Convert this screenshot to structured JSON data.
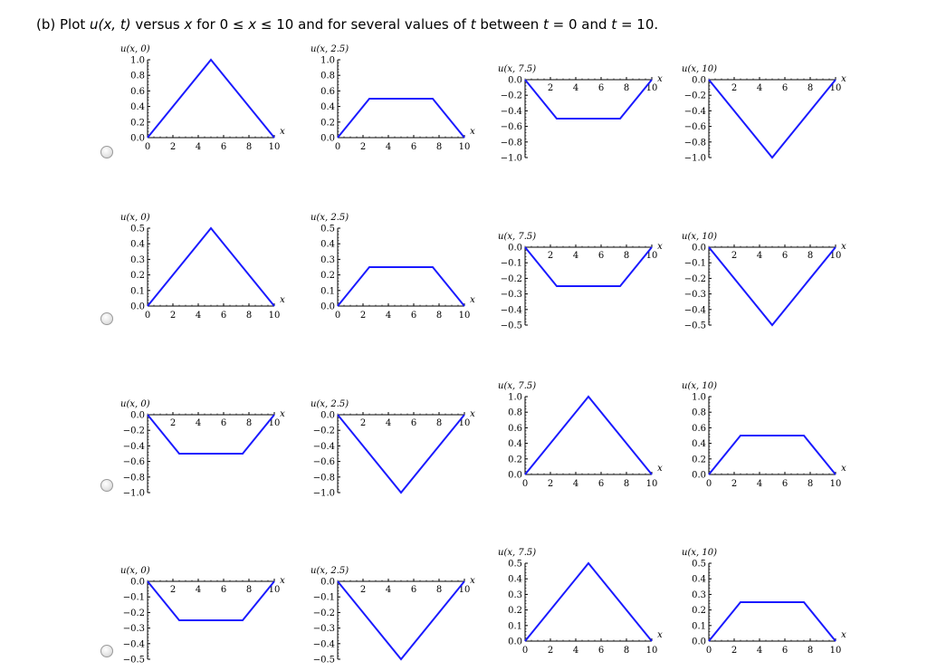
{
  "question": {
    "part": "(b) Plot ",
    "func": "u(x, t)",
    "mid1": " versus ",
    "var_x": "x",
    "mid2": " for  0 ≤ ",
    "mid3": " ≤ 10  and for several values of ",
    "var_t": "t",
    "mid4": " between  ",
    "mid5": " = 0  and  ",
    "mid6": " = 10."
  },
  "colors": {
    "curve": "#1a1aff",
    "axis": "#000000",
    "radio_border": "#9a9a9a"
  },
  "options": [
    {
      "name": "option-a",
      "plots": [
        {
          "label": "u(x, 0)",
          "yticks": [
            "1.0",
            "0.8",
            "0.6",
            "0.4",
            "0.2",
            "0.0"
          ],
          "ymin": 0,
          "ymax": 1.0,
          "points": [
            [
              0,
              0
            ],
            [
              5,
              1
            ],
            [
              10,
              0
            ]
          ]
        },
        {
          "label": "u(x, 2.5)",
          "yticks": [
            "1.0",
            "0.8",
            "0.6",
            "0.4",
            "0.2",
            "0.0"
          ],
          "ymin": 0,
          "ymax": 1.0,
          "points": [
            [
              0,
              0
            ],
            [
              2.5,
              0.5
            ],
            [
              7.5,
              0.5
            ],
            [
              10,
              0
            ]
          ]
        },
        {
          "label": "u(x, 7.5)",
          "yticks": [
            "0.0",
            "−0.2",
            "−0.4",
            "−0.6",
            "−0.8",
            "−1.0"
          ],
          "ymin": -1.0,
          "ymax": 0,
          "points": [
            [
              0,
              0
            ],
            [
              2.5,
              -0.5
            ],
            [
              7.5,
              -0.5
            ],
            [
              10,
              0
            ]
          ]
        },
        {
          "label": "u(x, 10)",
          "yticks": [
            "0.0",
            "−0.2",
            "−0.4",
            "−0.6",
            "−0.8",
            "−1.0"
          ],
          "ymin": -1.0,
          "ymax": 0,
          "points": [
            [
              0,
              0
            ],
            [
              5,
              -1
            ],
            [
              10,
              0
            ]
          ]
        }
      ]
    },
    {
      "name": "option-b",
      "plots": [
        {
          "label": "u(x, 0)",
          "yticks": [
            "0.5",
            "0.4",
            "0.3",
            "0.2",
            "0.1",
            "0.0"
          ],
          "ymin": 0,
          "ymax": 0.5,
          "points": [
            [
              0,
              0
            ],
            [
              5,
              0.5
            ],
            [
              10,
              0
            ]
          ]
        },
        {
          "label": "u(x, 2.5)",
          "yticks": [
            "0.5",
            "0.4",
            "0.3",
            "0.2",
            "0.1",
            "0.0"
          ],
          "ymin": 0,
          "ymax": 0.5,
          "points": [
            [
              0,
              0
            ],
            [
              2.5,
              0.25
            ],
            [
              7.5,
              0.25
            ],
            [
              10,
              0
            ]
          ]
        },
        {
          "label": "u(x, 7.5)",
          "yticks": [
            "0.0",
            "−0.1",
            "−0.2",
            "−0.3",
            "−0.4",
            "−0.5"
          ],
          "ymin": -0.5,
          "ymax": 0,
          "points": [
            [
              0,
              0
            ],
            [
              2.5,
              -0.25
            ],
            [
              7.5,
              -0.25
            ],
            [
              10,
              0
            ]
          ]
        },
        {
          "label": "u(x, 10)",
          "yticks": [
            "0.0",
            "−0.1",
            "−0.2",
            "−0.3",
            "−0.4",
            "−0.5"
          ],
          "ymin": -0.5,
          "ymax": 0,
          "points": [
            [
              0,
              0
            ],
            [
              5,
              -0.5
            ],
            [
              10,
              0
            ]
          ]
        }
      ]
    },
    {
      "name": "option-c",
      "plots": [
        {
          "label": "u(x, 0)",
          "yticks": [
            "0.0",
            "−0.2",
            "−0.4",
            "−0.6",
            "−0.8",
            "−1.0"
          ],
          "ymin": -1.0,
          "ymax": 0,
          "points": [
            [
              0,
              0
            ],
            [
              2.5,
              -0.5
            ],
            [
              7.5,
              -0.5
            ],
            [
              10,
              0
            ]
          ]
        },
        {
          "label": "u(x, 2.5)",
          "yticks": [
            "0.0",
            "−0.2",
            "−0.4",
            "−0.6",
            "−0.8",
            "−1.0"
          ],
          "ymin": -1.0,
          "ymax": 0,
          "points": [
            [
              0,
              0
            ],
            [
              5,
              -1
            ],
            [
              10,
              0
            ]
          ]
        },
        {
          "label": "u(x, 7.5)",
          "yticks": [
            "1.0",
            "0.8",
            "0.6",
            "0.4",
            "0.2",
            "0.0"
          ],
          "ymin": 0,
          "ymax": 1.0,
          "points": [
            [
              0,
              0
            ],
            [
              5,
              1
            ],
            [
              10,
              0
            ]
          ]
        },
        {
          "label": "u(x, 10)",
          "yticks": [
            "1.0",
            "0.8",
            "0.6",
            "0.4",
            "0.2",
            "0.0"
          ],
          "ymin": 0,
          "ymax": 1.0,
          "points": [
            [
              0,
              0
            ],
            [
              2.5,
              0.5
            ],
            [
              7.5,
              0.5
            ],
            [
              10,
              0
            ]
          ]
        }
      ]
    },
    {
      "name": "option-d",
      "plots": [
        {
          "label": "u(x, 0)",
          "yticks": [
            "0.0",
            "−0.1",
            "−0.2",
            "−0.3",
            "−0.4",
            "−0.5"
          ],
          "ymin": -0.5,
          "ymax": 0,
          "points": [
            [
              0,
              0
            ],
            [
              2.5,
              -0.25
            ],
            [
              7.5,
              -0.25
            ],
            [
              10,
              0
            ]
          ]
        },
        {
          "label": "u(x, 2.5)",
          "yticks": [
            "0.0",
            "−0.1",
            "−0.2",
            "−0.3",
            "−0.4",
            "−0.5"
          ],
          "ymin": -0.5,
          "ymax": 0,
          "points": [
            [
              0,
              0
            ],
            [
              5,
              -0.5
            ],
            [
              10,
              0
            ]
          ]
        },
        {
          "label": "u(x, 7.5)",
          "yticks": [
            "0.5",
            "0.4",
            "0.3",
            "0.2",
            "0.1",
            "0.0"
          ],
          "ymin": 0,
          "ymax": 0.5,
          "points": [
            [
              0,
              0
            ],
            [
              5,
              0.5
            ],
            [
              10,
              0
            ]
          ]
        },
        {
          "label": "u(x, 10)",
          "yticks": [
            "0.5",
            "0.4",
            "0.3",
            "0.2",
            "0.1",
            "0.0"
          ],
          "ymin": 0,
          "ymax": 0.5,
          "points": [
            [
              0,
              0
            ],
            [
              2.5,
              0.25
            ],
            [
              7.5,
              0.25
            ],
            [
              10,
              0
            ]
          ]
        }
      ]
    }
  ],
  "x_axis": {
    "label": "x",
    "xmin": 0,
    "xmax": 10,
    "ticks": [
      "2",
      "4",
      "6",
      "8",
      "10"
    ],
    "zero_label": "0"
  }
}
